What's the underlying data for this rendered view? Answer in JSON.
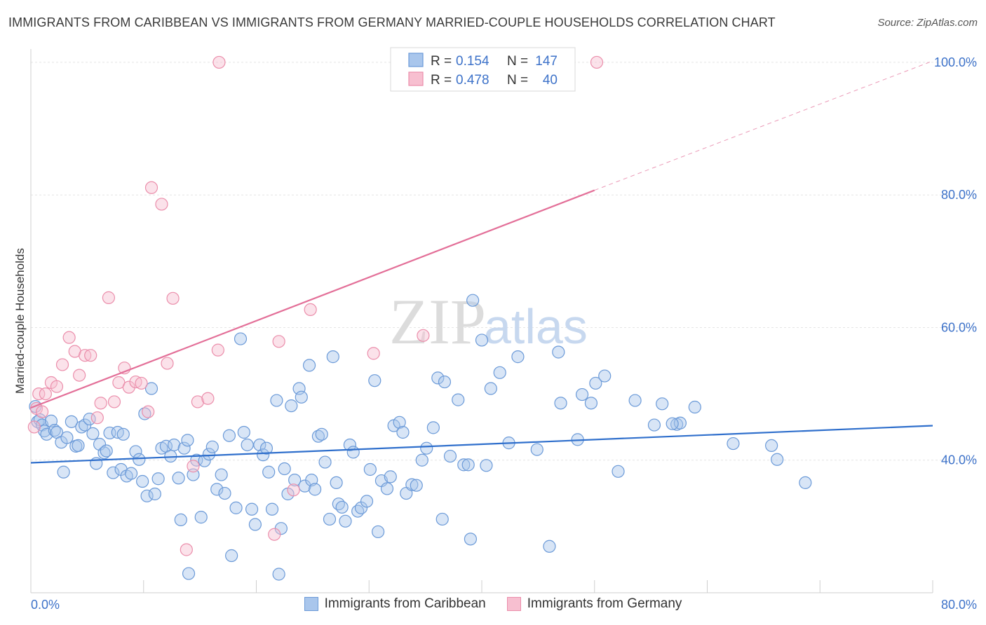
{
  "header": {
    "title": "IMMIGRANTS FROM CARIBBEAN VS IMMIGRANTS FROM GERMANY MARRIED-COUPLE HOUSEHOLDS CORRELATION CHART",
    "source": "Source: ZipAtlas.com"
  },
  "watermark": {
    "zip": "ZIP",
    "atlas": "atlas"
  },
  "colors": {
    "blue_fill": "#a9c6ec",
    "blue_stroke": "#6b9ad8",
    "blue_line": "#2f6fcc",
    "pink_fill": "#f7bfd0",
    "pink_stroke": "#eb8eab",
    "pink_line": "#e36f98",
    "axis_text": "#3d72c9"
  },
  "legend_top": {
    "rows": [
      {
        "r_label": "R =",
        "r_value": "0.154",
        "n_label": "N =",
        "n_value": "147"
      },
      {
        "r_label": "R =",
        "r_value": "0.478",
        "n_label": "N =",
        "n_value": "40"
      }
    ]
  },
  "legend_bottom": {
    "items": [
      {
        "label": "Immigrants from Caribbean"
      },
      {
        "label": "Immigrants from Germany"
      }
    ]
  },
  "chart_data": {
    "type": "scatter",
    "title": "IMMIGRANTS FROM CARIBBEAN VS IMMIGRANTS FROM GERMANY MARRIED-COUPLE HOUSEHOLDS CORRELATION CHART",
    "xlabel": "",
    "ylabel": "Married-couple Households",
    "xlim": [
      0,
      80
    ],
    "ylim": [
      20,
      102
    ],
    "x_tick_labels": [
      "0.0%",
      "80.0%"
    ],
    "y_ticks": [
      40,
      60,
      80,
      100
    ],
    "y_tick_labels": [
      "40.0%",
      "60.0%",
      "80.0%",
      "100.0%"
    ],
    "series": [
      {
        "name": "Immigrants from Caribbean",
        "r": 0.154,
        "n": 147,
        "trend": {
          "x0": 0,
          "y0": 39.6,
          "x1": 80,
          "y1": 45.2
        },
        "points": [
          [
            0.4,
            48.1
          ],
          [
            0.6,
            45.8
          ],
          [
            0.8,
            46.1
          ],
          [
            1.0,
            45.3
          ],
          [
            1.2,
            44.4
          ],
          [
            1.4,
            43.9
          ],
          [
            1.8,
            45.9
          ],
          [
            2.1,
            44.5
          ],
          [
            2.3,
            44.2
          ],
          [
            2.7,
            42.7
          ],
          [
            2.9,
            38.2
          ],
          [
            3.2,
            43.4
          ],
          [
            3.6,
            45.8
          ],
          [
            4.0,
            42.1
          ],
          [
            4.2,
            42.2
          ],
          [
            4.5,
            45.0
          ],
          [
            4.8,
            45.3
          ],
          [
            5.2,
            46.2
          ],
          [
            5.5,
            44.0
          ],
          [
            5.8,
            39.5
          ],
          [
            6.1,
            42.4
          ],
          [
            6.5,
            41.1
          ],
          [
            6.7,
            41.4
          ],
          [
            7.0,
            44.1
          ],
          [
            7.3,
            38.1
          ],
          [
            7.7,
            44.2
          ],
          [
            8.0,
            38.6
          ],
          [
            8.2,
            43.9
          ],
          [
            8.5,
            37.6
          ],
          [
            8.9,
            38.0
          ],
          [
            9.3,
            41.3
          ],
          [
            9.6,
            40.1
          ],
          [
            9.9,
            36.8
          ],
          [
            10.1,
            47.0
          ],
          [
            10.3,
            34.6
          ],
          [
            10.7,
            50.8
          ],
          [
            11.0,
            34.9
          ],
          [
            11.3,
            37.2
          ],
          [
            11.6,
            41.8
          ],
          [
            12.0,
            42.1
          ],
          [
            12.4,
            40.6
          ],
          [
            12.7,
            42.3
          ],
          [
            13.1,
            37.3
          ],
          [
            13.3,
            31.0
          ],
          [
            13.6,
            41.8
          ],
          [
            13.9,
            43.0
          ],
          [
            14.0,
            22.9
          ],
          [
            14.4,
            37.8
          ],
          [
            14.7,
            40.0
          ],
          [
            15.1,
            31.4
          ],
          [
            15.4,
            39.9
          ],
          [
            15.8,
            40.9
          ],
          [
            16.1,
            42.0
          ],
          [
            16.5,
            35.6
          ],
          [
            16.9,
            37.8
          ],
          [
            17.2,
            35.0
          ],
          [
            17.6,
            43.7
          ],
          [
            17.8,
            25.6
          ],
          [
            18.2,
            32.8
          ],
          [
            18.6,
            58.3
          ],
          [
            18.9,
            44.2
          ],
          [
            19.2,
            42.3
          ],
          [
            19.6,
            32.6
          ],
          [
            19.9,
            30.3
          ],
          [
            20.3,
            42.3
          ],
          [
            20.6,
            40.8
          ],
          [
            20.9,
            41.8
          ],
          [
            21.1,
            38.2
          ],
          [
            21.4,
            32.6
          ],
          [
            21.8,
            49.0
          ],
          [
            22.0,
            22.8
          ],
          [
            22.2,
            29.7
          ],
          [
            22.5,
            38.7
          ],
          [
            22.8,
            34.9
          ],
          [
            23.1,
            48.2
          ],
          [
            23.4,
            37.0
          ],
          [
            23.8,
            50.8
          ],
          [
            24.0,
            49.5
          ],
          [
            24.3,
            36.1
          ],
          [
            24.7,
            54.3
          ],
          [
            24.9,
            37.0
          ],
          [
            25.2,
            35.6
          ],
          [
            25.5,
            43.6
          ],
          [
            25.8,
            43.9
          ],
          [
            26.1,
            39.7
          ],
          [
            26.5,
            31.1
          ],
          [
            26.8,
            55.6
          ],
          [
            27.1,
            36.6
          ],
          [
            27.3,
            33.4
          ],
          [
            27.6,
            32.9
          ],
          [
            27.9,
            30.8
          ],
          [
            28.3,
            42.3
          ],
          [
            28.6,
            41.2
          ],
          [
            29.0,
            32.3
          ],
          [
            29.3,
            32.8
          ],
          [
            29.8,
            33.8
          ],
          [
            30.1,
            38.6
          ],
          [
            30.5,
            52.0
          ],
          [
            30.8,
            29.2
          ],
          [
            31.1,
            36.9
          ],
          [
            31.6,
            35.7
          ],
          [
            31.9,
            37.5
          ],
          [
            32.2,
            45.2
          ],
          [
            32.7,
            45.7
          ],
          [
            33.0,
            44.2
          ],
          [
            33.3,
            35.0
          ],
          [
            33.8,
            36.3
          ],
          [
            34.2,
            36.2
          ],
          [
            34.7,
            40.0
          ],
          [
            35.1,
            41.8
          ],
          [
            35.7,
            44.9
          ],
          [
            36.1,
            52.4
          ],
          [
            36.5,
            31.1
          ],
          [
            36.7,
            51.8
          ],
          [
            37.2,
            40.6
          ],
          [
            37.9,
            49.1
          ],
          [
            38.4,
            39.3
          ],
          [
            38.8,
            39.3
          ],
          [
            39.2,
            64.1
          ],
          [
            39.0,
            28.1
          ],
          [
            40.0,
            58.1
          ],
          [
            40.4,
            39.2
          ],
          [
            40.8,
            50.8
          ],
          [
            41.6,
            53.2
          ],
          [
            42.4,
            42.6
          ],
          [
            43.2,
            55.6
          ],
          [
            44.9,
            41.6
          ],
          [
            46.0,
            27.0
          ],
          [
            46.8,
            56.3
          ],
          [
            47.0,
            48.6
          ],
          [
            48.5,
            43.1
          ],
          [
            48.9,
            49.9
          ],
          [
            49.7,
            48.6
          ],
          [
            50.1,
            51.6
          ],
          [
            50.9,
            52.7
          ],
          [
            52.1,
            38.3
          ],
          [
            53.6,
            49.0
          ],
          [
            55.3,
            45.3
          ],
          [
            56.0,
            48.5
          ],
          [
            57.3,
            45.4
          ],
          [
            57.6,
            45.6
          ],
          [
            58.9,
            48.0
          ],
          [
            62.3,
            42.5
          ],
          [
            65.7,
            42.2
          ],
          [
            66.2,
            40.1
          ],
          [
            68.7,
            36.6
          ],
          [
            56.9,
            45.5
          ]
        ]
      },
      {
        "name": "Immigrants from Germany",
        "r": 0.478,
        "n": 40,
        "trend": {
          "x0": 0,
          "y0": 47.9,
          "x1": 50,
          "y1": 80.7,
          "dashed_to": {
            "x": 80,
            "y": 100.2
          }
        },
        "points": [
          [
            0.3,
            45.0
          ],
          [
            0.5,
            47.8
          ],
          [
            0.7,
            50.0
          ],
          [
            1.0,
            47.3
          ],
          [
            1.3,
            50.0
          ],
          [
            1.8,
            51.7
          ],
          [
            2.3,
            51.1
          ],
          [
            2.8,
            54.4
          ],
          [
            3.4,
            58.5
          ],
          [
            3.9,
            56.4
          ],
          [
            4.3,
            52.8
          ],
          [
            4.8,
            55.8
          ],
          [
            5.3,
            55.8
          ],
          [
            5.9,
            46.4
          ],
          [
            6.2,
            48.6
          ],
          [
            6.9,
            64.5
          ],
          [
            7.4,
            48.8
          ],
          [
            7.8,
            51.7
          ],
          [
            8.3,
            53.9
          ],
          [
            8.7,
            51.0
          ],
          [
            9.3,
            51.8
          ],
          [
            9.8,
            51.6
          ],
          [
            10.4,
            47.3
          ],
          [
            10.7,
            81.1
          ],
          [
            11.6,
            78.6
          ],
          [
            12.1,
            54.6
          ],
          [
            12.6,
            64.4
          ],
          [
            13.8,
            26.5
          ],
          [
            14.4,
            39.1
          ],
          [
            14.8,
            48.8
          ],
          [
            15.7,
            49.3
          ],
          [
            16.6,
            56.6
          ],
          [
            16.7,
            100.0
          ],
          [
            22.0,
            57.9
          ],
          [
            21.6,
            28.8
          ],
          [
            23.3,
            35.5
          ],
          [
            24.8,
            62.7
          ],
          [
            30.4,
            56.1
          ],
          [
            34.8,
            58.8
          ],
          [
            50.2,
            100.0
          ]
        ]
      }
    ]
  }
}
